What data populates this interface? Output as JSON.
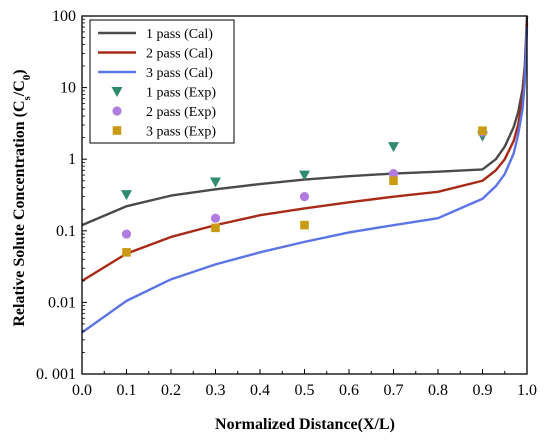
{
  "chart_data": {
    "type": "line",
    "title": "",
    "xlabel": "Normalized Distance(X/L)",
    "ylabel": "Relative Solute Concentration (C",
    "ylabel_sub_1": "s",
    "ylabel_mid": "/C",
    "ylabel_sub_2": "0",
    "ylabel_end": ")",
    "xlim": [
      0.0,
      1.0
    ],
    "ylim": [
      0.001,
      100
    ],
    "yscale": "log",
    "grid": false,
    "legend_position": "top-left",
    "x_ticks": [
      0.0,
      0.1,
      0.2,
      0.3,
      0.4,
      0.5,
      0.6,
      0.7,
      0.8,
      0.9,
      1.0
    ],
    "x_tick_labels": [
      "0.0",
      "0.1",
      "0.2",
      "0.3",
      "0.4",
      "0.5",
      "0.6",
      "0.7",
      "0.8",
      "0.9",
      "1.0"
    ],
    "y_ticks": [
      0.001,
      0.01,
      0.1,
      1,
      10,
      100
    ],
    "y_tick_labels": [
      "0. 001",
      "0.01",
      "0.1",
      "1",
      "10",
      "100"
    ],
    "series": [
      {
        "name": "1 pass (Cal)",
        "kind": "line",
        "color": "#4a4a4a",
        "x": [
          0.0,
          0.1,
          0.2,
          0.3,
          0.4,
          0.5,
          0.6,
          0.7,
          0.8,
          0.9,
          0.93,
          0.95,
          0.97,
          0.98,
          0.99,
          0.995,
          1.0
        ],
        "y": [
          0.12,
          0.22,
          0.31,
          0.38,
          0.45,
          0.52,
          0.58,
          0.63,
          0.67,
          0.72,
          1.0,
          1.5,
          2.8,
          4.5,
          9.5,
          20,
          100
        ]
      },
      {
        "name": "2 pass (Cal)",
        "kind": "line",
        "color": "#a82a16",
        "x": [
          0.0,
          0.1,
          0.2,
          0.3,
          0.4,
          0.5,
          0.6,
          0.7,
          0.8,
          0.9,
          0.93,
          0.95,
          0.97,
          0.98,
          0.99,
          0.995,
          1.0
        ],
        "y": [
          0.02,
          0.048,
          0.082,
          0.12,
          0.165,
          0.205,
          0.25,
          0.3,
          0.35,
          0.5,
          0.7,
          1.0,
          1.8,
          3.0,
          7.0,
          15,
          80
        ]
      },
      {
        "name": "3 pass (Cal)",
        "kind": "line",
        "color": "#5b74e6",
        "x": [
          0.0,
          0.1,
          0.2,
          0.3,
          0.4,
          0.5,
          0.6,
          0.7,
          0.8,
          0.9,
          0.93,
          0.95,
          0.97,
          0.98,
          0.99,
          0.995,
          1.0
        ],
        "y": [
          0.0038,
          0.0105,
          0.021,
          0.034,
          0.05,
          0.07,
          0.095,
          0.12,
          0.15,
          0.28,
          0.42,
          0.62,
          1.2,
          2.2,
          5.0,
          12,
          70
        ]
      },
      {
        "name": "1 pass (Exp)",
        "kind": "marker",
        "marker": "triangle-down",
        "color": "#2e8b6e",
        "x": [
          0.1,
          0.3,
          0.5,
          0.7,
          0.9
        ],
        "y": [
          0.32,
          0.48,
          0.6,
          1.5,
          2.1
        ]
      },
      {
        "name": "2 pass (Exp)",
        "kind": "marker",
        "marker": "circle",
        "color": "#b07ce0",
        "x": [
          0.1,
          0.3,
          0.5,
          0.7,
          0.9
        ],
        "y": [
          0.09,
          0.15,
          0.3,
          0.63,
          2.4
        ]
      },
      {
        "name": "3 pass (Exp)",
        "kind": "marker",
        "marker": "square",
        "color": "#c99a14",
        "x": [
          0.1,
          0.3,
          0.5,
          0.7,
          0.9
        ],
        "y": [
          0.05,
          0.11,
          0.12,
          0.5,
          2.5
        ]
      }
    ]
  }
}
